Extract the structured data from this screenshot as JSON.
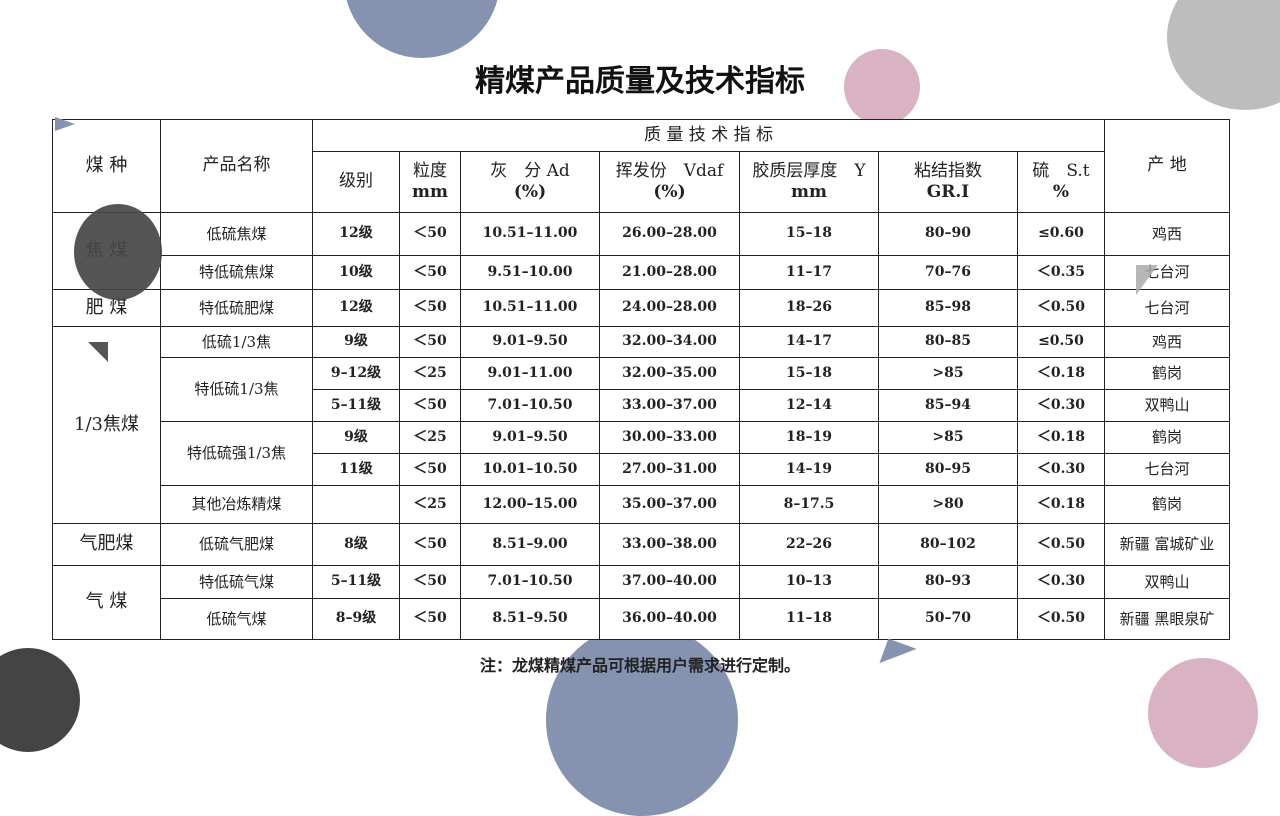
{
  "title": "精煤产品质量及技术指标",
  "colors": {
    "blue_circle": "#8593b0",
    "pink_circle": "#d9b3c3",
    "gray_circle": "#bdbdbd",
    "dark_circle": "#4a4a4a"
  },
  "table": {
    "headers": {
      "coal_type": "煤 种",
      "product": "产品名称",
      "group": "质 量 技 术 指 标",
      "origin": "产 地",
      "columns": [
        {
          "line1": "级别",
          "line2": ""
        },
        {
          "line1": "粒度",
          "line2": "mm"
        },
        {
          "line1": "灰　分  Ad",
          "line2": "(%)"
        },
        {
          "line1": "挥发份　Vdaf",
          "line2": "(%)"
        },
        {
          "line1": "胶质层厚度　Y",
          "line2": "mm"
        },
        {
          "line1": "粘结指数",
          "line2": "GR.I"
        },
        {
          "line1": "硫　S.t",
          "line2": "%"
        }
      ]
    },
    "rows": [
      {
        "coal_type": "焦 煤",
        "product": "低硫焦煤",
        "values": [
          "12级",
          "＜50",
          "10.51–11.00",
          "26.00–28.00",
          "15–18",
          "80–90",
          "≤0.60",
          "鸡西"
        ]
      },
      {
        "coal_type": null,
        "product": "特低硫焦煤",
        "values": [
          "10级",
          "＜50",
          "9.51–10.00",
          "21.00–28.00",
          "11–17",
          "70–76",
          "＜0.35",
          "七台河"
        ]
      },
      {
        "coal_type": "肥 煤",
        "product": "特低硫肥煤",
        "values": [
          "12级",
          "＜50",
          "10.51–11.00",
          "24.00–28.00",
          "18–26",
          "85–98",
          "＜0.50",
          "七台河"
        ]
      },
      {
        "coal_type": "1/3焦煤",
        "product": "低硫1/3焦",
        "values": [
          "9级",
          "＜50",
          "9.01–9.50",
          "32.00–34.00",
          "14–17",
          "80–85",
          "≤0.50",
          "鸡西"
        ]
      },
      {
        "coal_type": null,
        "product": "特低硫1/3焦",
        "values": [
          "9–12级",
          "＜25",
          "9.01–11.00",
          "32.00–35.00",
          "15–18",
          ">85",
          "＜0.18",
          "鹤岗"
        ]
      },
      {
        "coal_type": null,
        "product": null,
        "values": [
          "5–11级",
          "＜50",
          "7.01–10.50",
          "33.00–37.00",
          "12–14",
          "85–94",
          "＜0.30",
          "双鸭山"
        ]
      },
      {
        "coal_type": null,
        "product": "特低硫强1/3焦",
        "values": [
          "9级",
          "＜25",
          "9.01–9.50",
          "30.00–33.00",
          "18–19",
          ">85",
          "＜0.18",
          "鹤岗"
        ]
      },
      {
        "coal_type": null,
        "product": null,
        "values": [
          "11级",
          "＜50",
          "10.01–10.50",
          "27.00–31.00",
          "14–19",
          "80–95",
          "＜0.30",
          "七台河"
        ]
      },
      {
        "coal_type": null,
        "product": "其他冶炼精煤",
        "values": [
          "",
          "＜25",
          "12.00–15.00",
          "35.00–37.00",
          "8–17.5",
          ">80",
          "＜0.18",
          "鹤岗"
        ]
      },
      {
        "coal_type": "气肥煤",
        "product": "低硫气肥煤",
        "values": [
          "8级",
          "＜50",
          "8.51–9.00",
          "33.00–38.00",
          "22–26",
          "80–102",
          "＜0.50",
          "新疆  富城矿业"
        ]
      },
      {
        "coal_type": "气 煤",
        "product": "特低硫气煤",
        "values": [
          "5–11级",
          "＜50",
          "7.01–10.50",
          "37.00–40.00",
          "10–13",
          "80–93",
          "＜0.30",
          "双鸭山"
        ]
      },
      {
        "coal_type": null,
        "product": "低硫气煤",
        "values": [
          "8–9级",
          "＜50",
          "8.51–9.50",
          "36.00–40.00",
          "11–18",
          "50–70",
          "＜0.50",
          "新疆  黑眼泉矿"
        ]
      }
    ]
  },
  "note": "注：龙煤精煤产品可根据用户需求进行定制。"
}
